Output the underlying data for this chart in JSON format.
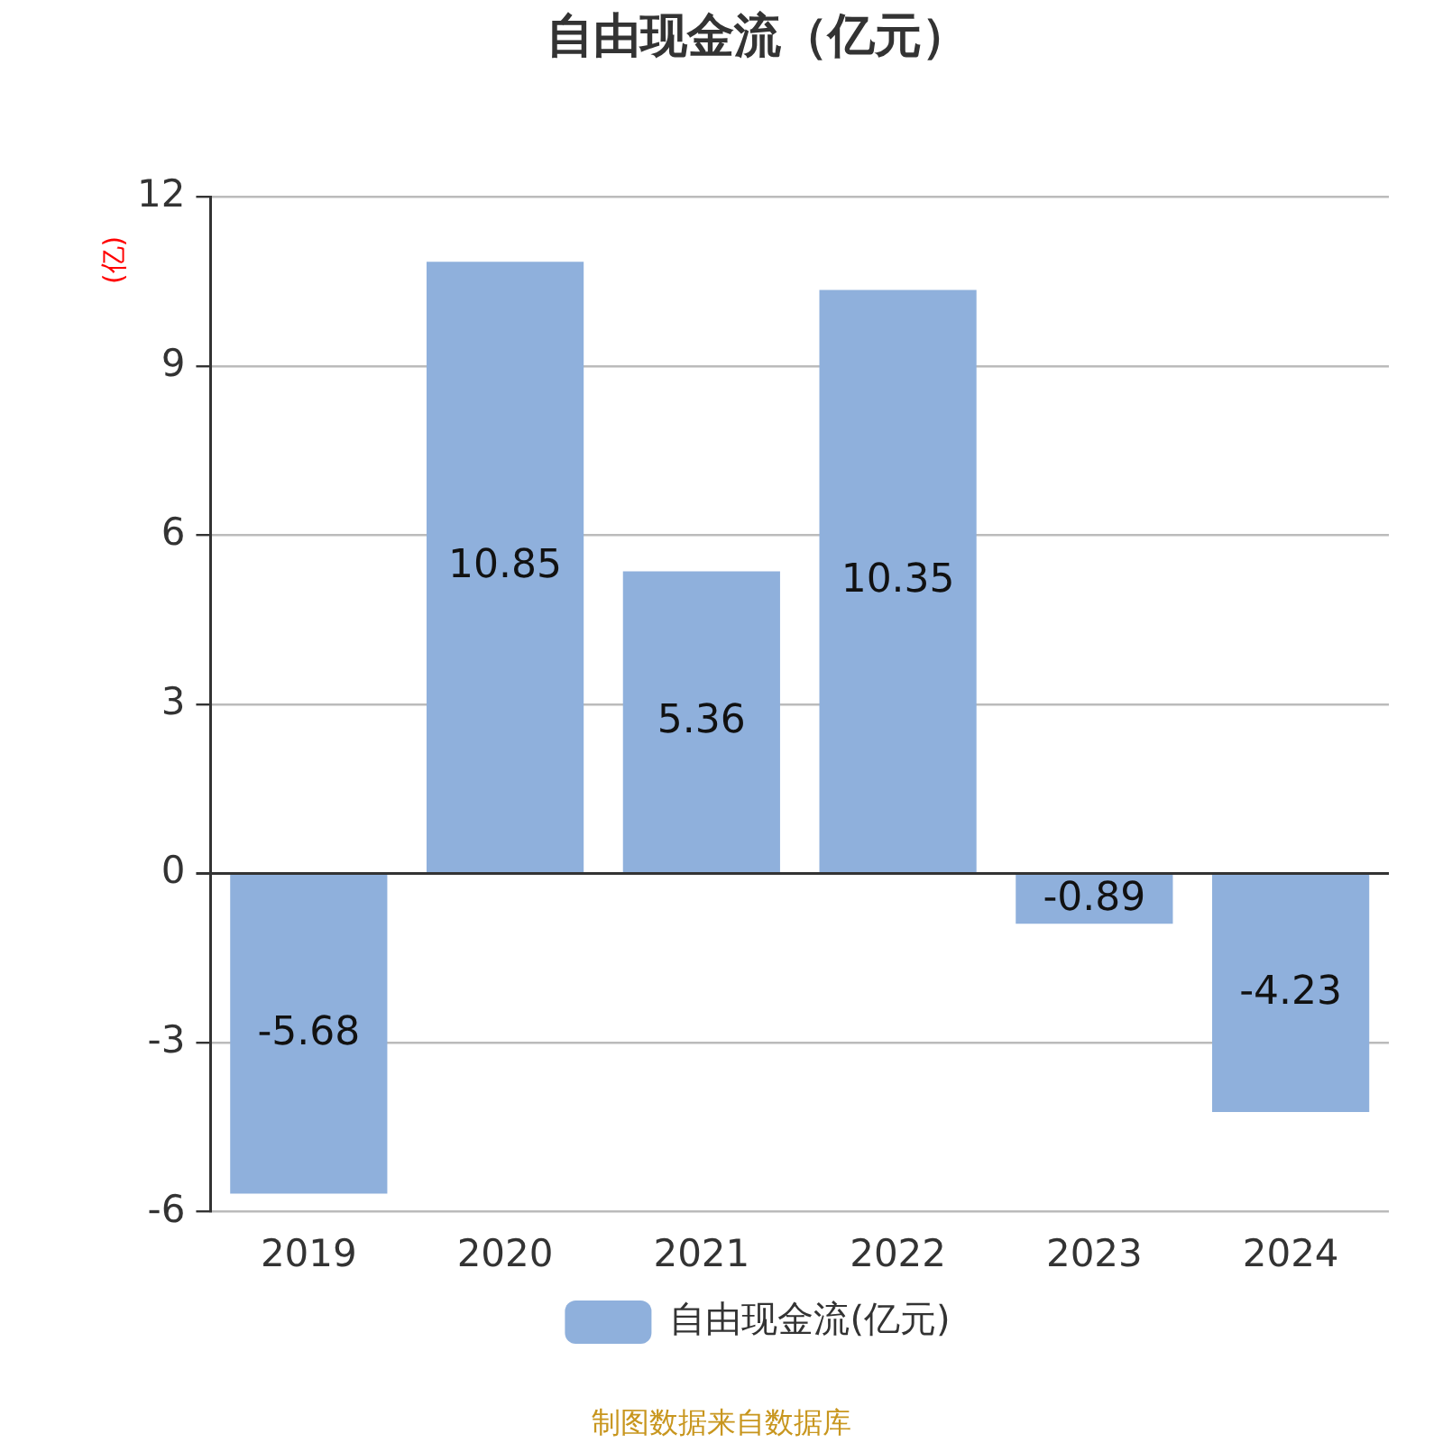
{
  "chart_data": {
    "type": "bar",
    "title": "自由现金流（亿元）",
    "ylabel": "(亿)",
    "categories": [
      "2019",
      "2020",
      "2021",
      "2022",
      "2023",
      "2024"
    ],
    "series": [
      {
        "name": "自由现金流(亿元)",
        "color": "#8fb0dc",
        "values": [
          -5.68,
          10.85,
          5.36,
          10.35,
          -0.89,
          -4.23
        ]
      }
    ],
    "ylim": [
      -6,
      12
    ],
    "yticks": [
      -6,
      -3,
      0,
      3,
      6,
      9,
      12
    ],
    "grid": "y",
    "legend": "bottom",
    "data_labels": true,
    "annotations": [
      "制图数据来自数据库"
    ]
  }
}
